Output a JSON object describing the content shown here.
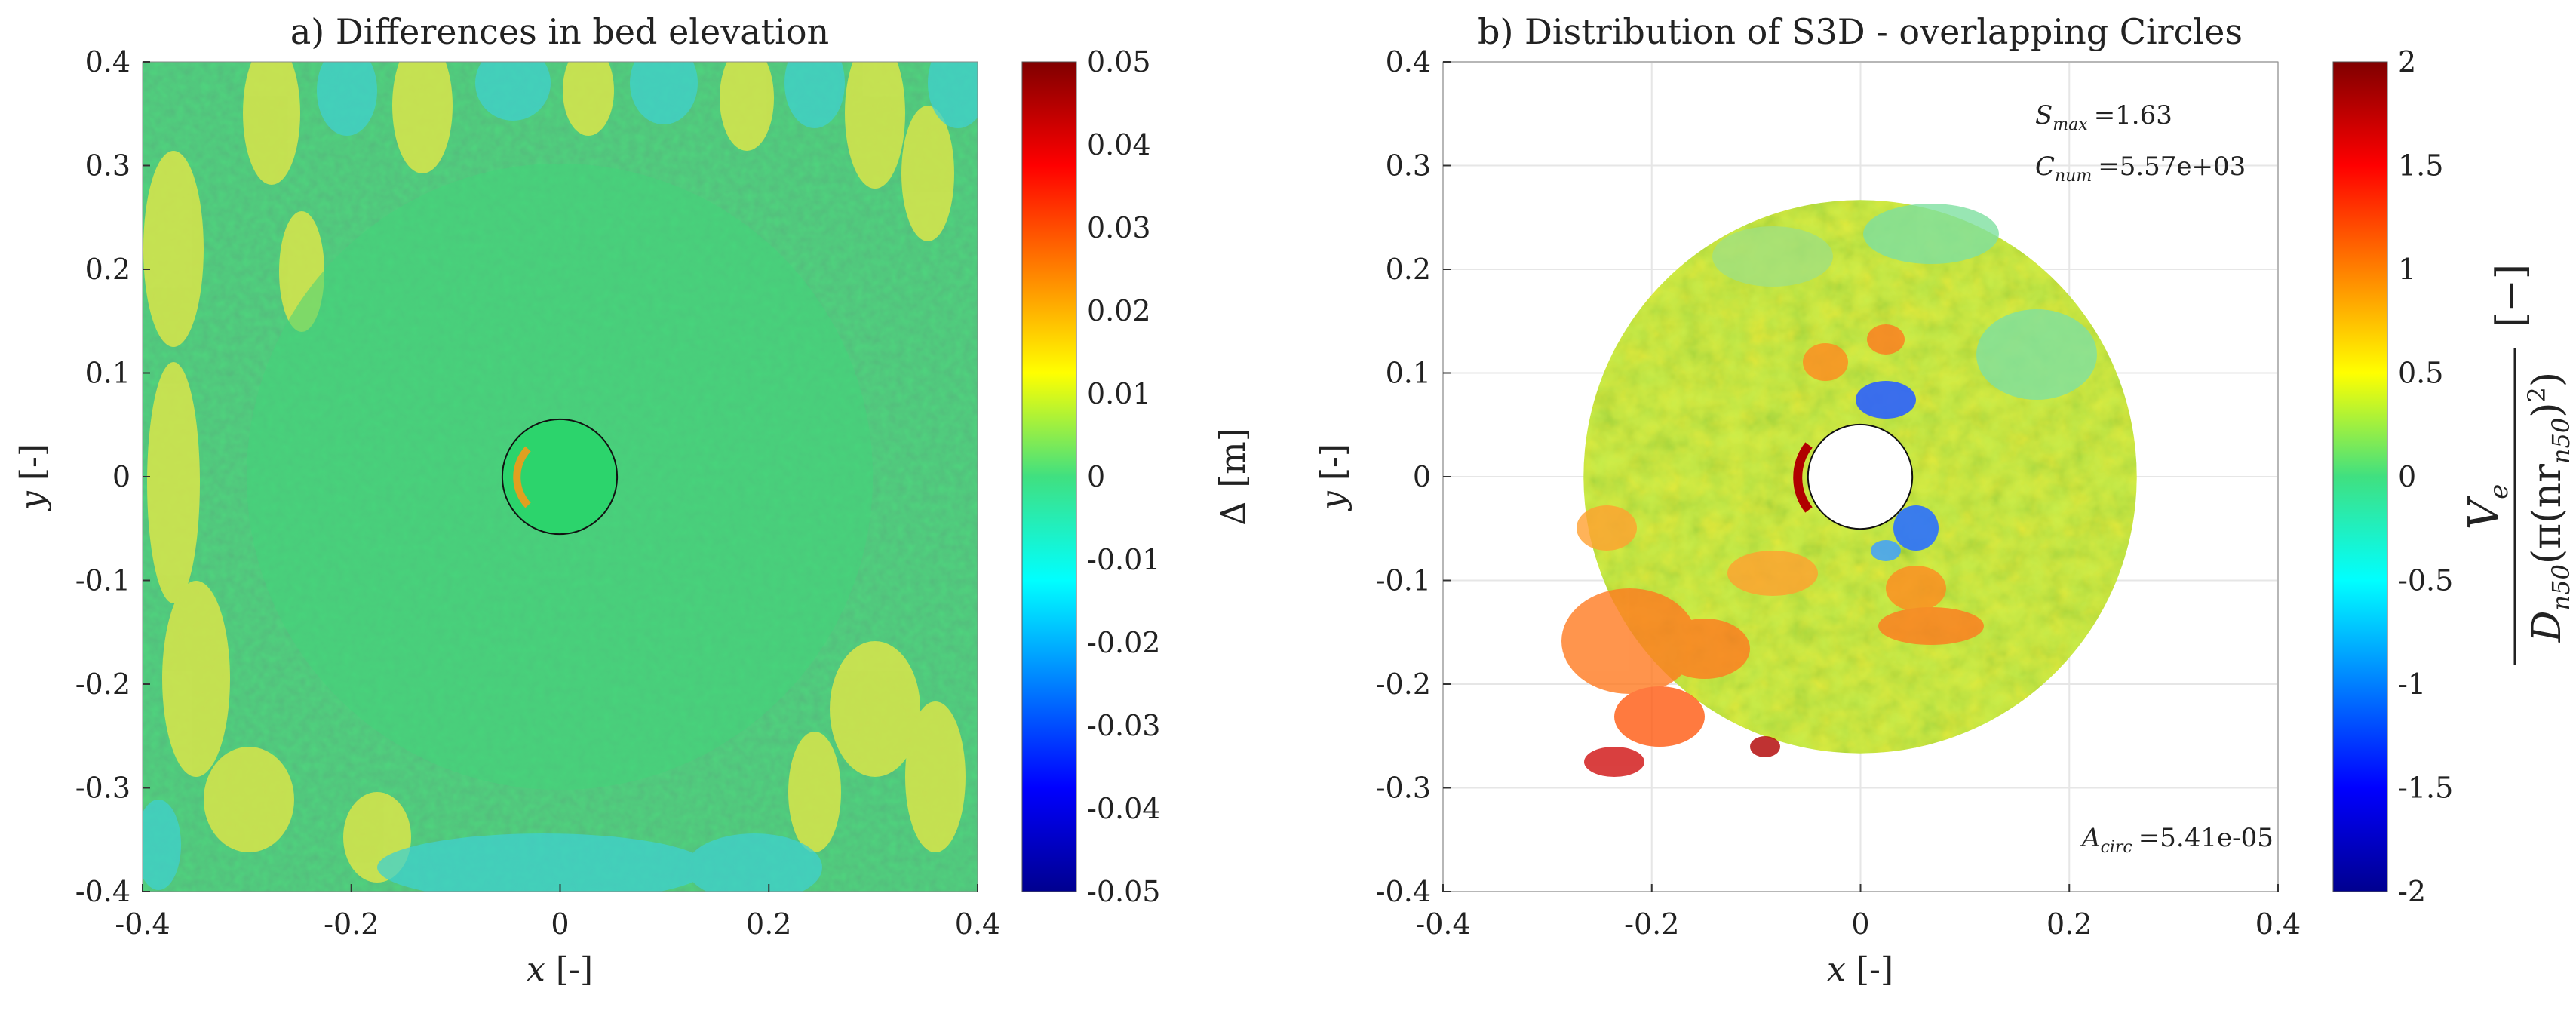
{
  "chart_data": [
    {
      "type": "heatmap",
      "title": "a) Differences in bed elevation",
      "xlabel_var": "x",
      "xlabel_unit": "[-]",
      "ylabel_var": "y",
      "ylabel_unit": "[-]",
      "xlim": [
        -0.4,
        0.4
      ],
      "ylim": [
        -0.4,
        0.4
      ],
      "x_ticks": [
        "-0.4",
        "-0.2",
        "0",
        "0.2",
        "0.4"
      ],
      "y_ticks": [
        "0.4",
        "0.3",
        "0.2",
        "0.1",
        "0",
        "-0.1",
        "-0.2",
        "-0.3",
        "-0.4"
      ],
      "pile_radius": 0.055,
      "scour_radius": 0.3,
      "colorbar": {
        "label_symbol": "Δ",
        "label_unit": "[m]",
        "range": [
          -0.05,
          0.05
        ],
        "ticks": [
          "0.05",
          "0.04",
          "0.03",
          "0.02",
          "0.01",
          "0",
          "-0.01",
          "-0.02",
          "-0.03",
          "-0.04",
          "-0.05"
        ]
      }
    },
    {
      "type": "heatmap",
      "title": "b) Distribution of S3D - overlapping Circles",
      "xlabel_var": "x",
      "xlabel_unit": "[-]",
      "ylabel_var": "y",
      "ylabel_unit": "[-]",
      "xlim": [
        -0.4,
        0.4
      ],
      "ylim": [
        -0.4,
        0.4
      ],
      "x_ticks": [
        "-0.4",
        "-0.2",
        "0",
        "0.2",
        "0.4"
      ],
      "y_ticks": [
        "0.4",
        "0.3",
        "0.2",
        "0.1",
        "0",
        "-0.1",
        "-0.2",
        "-0.3",
        "-0.4"
      ],
      "outer_radius": 0.265,
      "inner_radius": 0.05,
      "annotations": {
        "smax_symbol": "S",
        "smax_sub": "max",
        "smax_value": "=1.63",
        "cnum_symbol": "C",
        "cnum_sub": "num",
        "cnum_value": "=5.57e+03",
        "acirc_symbol": "A",
        "acirc_sub": "circ",
        "acirc_value": "=5.41e-05"
      },
      "colorbar": {
        "range": [
          -2,
          2
        ],
        "ticks": [
          "2",
          "1.5",
          "1",
          "0.5",
          "0",
          "-0.5",
          "-1",
          "-1.5",
          "-2"
        ],
        "label_num": "V",
        "label_num_sub": "e",
        "label_den_D": "D",
        "label_den_sub": "n50",
        "label_den_rest": "(π(nr",
        "label_den_sub2": "n50",
        "label_den_end": ")",
        "label_den_sup": "2",
        "label_den_close": ")",
        "label_unit": "[−]"
      }
    }
  ],
  "colors": {
    "jet": [
      "#00008f",
      "#0000ff",
      "#0080ff",
      "#00ffff",
      "#80ff80",
      "#ffff00",
      "#ff8000",
      "#ff0000",
      "#800000"
    ],
    "grid": "#e6e6e6",
    "axis": "#333333"
  }
}
